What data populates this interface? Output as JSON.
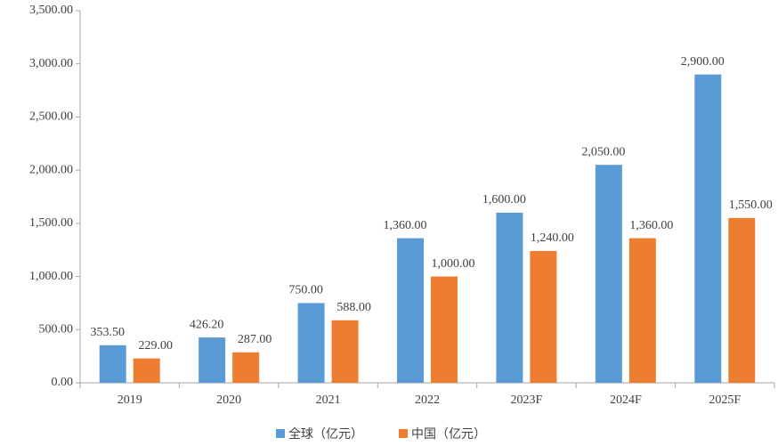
{
  "chart_data": {
    "type": "bar",
    "categories": [
      "2019",
      "2020",
      "2021",
      "2022",
      "2023F",
      "2024F",
      "2025F"
    ],
    "series": [
      {
        "name": "全球（亿元）",
        "color": "#5b9bd5",
        "values": [
          353.5,
          426.2,
          750,
          1360,
          1600,
          2050,
          2900
        ],
        "value_labels": [
          "353.50",
          "426.20",
          "750.00",
          "1,360.00",
          "1,600.00",
          "2,050.00",
          "2,900.00"
        ]
      },
      {
        "name": "中国（亿元）",
        "color": "#ed7d31",
        "values": [
          229,
          287,
          588,
          1000,
          1240,
          1360,
          1550
        ],
        "value_labels": [
          "229.00",
          "287.00",
          "588.00",
          "1,000.00",
          "1,240.00",
          "1,360.00",
          "1,550.00"
        ]
      }
    ],
    "ylim": [
      0,
      3500
    ],
    "yticks": [
      {
        "value": 0,
        "label": "0.00"
      },
      {
        "value": 500,
        "label": "500.00"
      },
      {
        "value": 1000,
        "label": "1,000.00"
      },
      {
        "value": 1500,
        "label": "1,500.00"
      },
      {
        "value": 2000,
        "label": "2,000.00"
      },
      {
        "value": 2500,
        "label": "2,500.00"
      },
      {
        "value": 3000,
        "label": "3,000.00"
      },
      {
        "value": 3500,
        "label": "3,500.00"
      }
    ],
    "grid": false,
    "legend": "bottom"
  }
}
